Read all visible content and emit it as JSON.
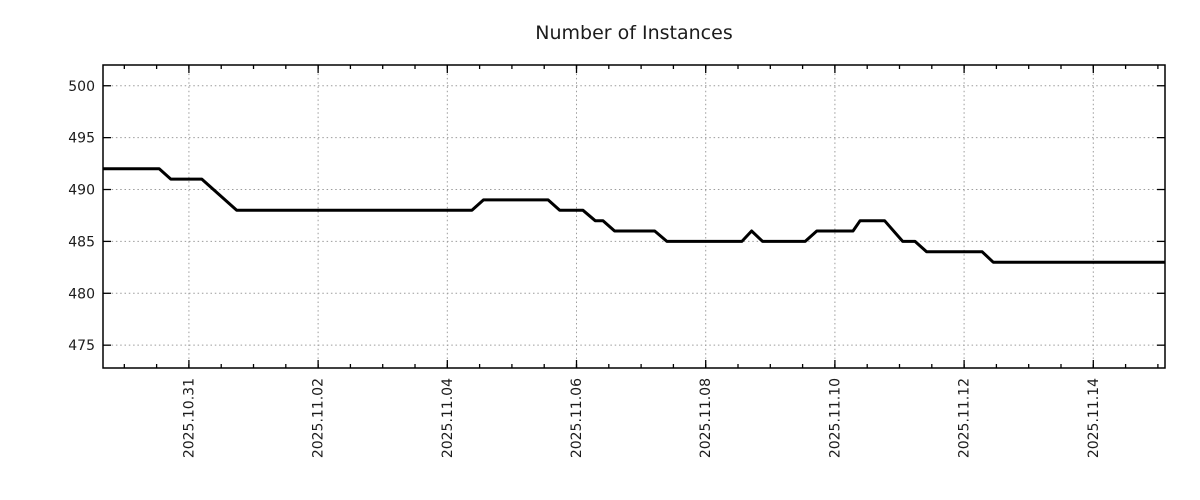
{
  "chart_data": {
    "type": "line",
    "title": "Number of Instances",
    "x_axis": {
      "unit": "days since 2025-10-31 00:00",
      "range": [
        -1.33,
        15.11
      ],
      "minor_tick_step": 0.5,
      "major_ticks": [
        {
          "t": 0,
          "label": "2025.10.31"
        },
        {
          "t": 2,
          "label": "2025.11.02"
        },
        {
          "t": 4,
          "label": "2025.11.04"
        },
        {
          "t": 6,
          "label": "2025.11.06"
        },
        {
          "t": 8,
          "label": "2025.11.08"
        },
        {
          "t": 10,
          "label": "2025.11.10"
        },
        {
          "t": 12,
          "label": "2025.11.12"
        },
        {
          "t": 14,
          "label": "2025.11.14"
        }
      ]
    },
    "y_axis": {
      "range": [
        472.8,
        502.0
      ],
      "ticks": [
        475,
        480,
        485,
        490,
        495,
        500
      ]
    },
    "grid": {
      "show": true,
      "style": "dotted"
    },
    "legend": {
      "show": false
    },
    "series": [
      {
        "name": "Number of Instances",
        "points": [
          [
            -1.33,
            492
          ],
          [
            -0.46,
            492
          ],
          [
            -0.28,
            491
          ],
          [
            0.2,
            491
          ],
          [
            0.74,
            488
          ],
          [
            4.38,
            488
          ],
          [
            4.56,
            489
          ],
          [
            5.56,
            489
          ],
          [
            5.74,
            488
          ],
          [
            6.1,
            488
          ],
          [
            6.29,
            487
          ],
          [
            6.41,
            487
          ],
          [
            6.59,
            486
          ],
          [
            7.21,
            486
          ],
          [
            7.4,
            485
          ],
          [
            8.56,
            485
          ],
          [
            8.71,
            486
          ],
          [
            8.88,
            485
          ],
          [
            9.54,
            485
          ],
          [
            9.72,
            486
          ],
          [
            10.28,
            486
          ],
          [
            10.39,
            487
          ],
          [
            10.77,
            487
          ],
          [
            11.05,
            485
          ],
          [
            11.24,
            485
          ],
          [
            11.42,
            484
          ],
          [
            12.28,
            484
          ],
          [
            12.45,
            483
          ],
          [
            15.11,
            483
          ]
        ]
      }
    ],
    "colors": {
      "line": "#000000",
      "grid": "#9c9c9c",
      "text": "#1c1c1c",
      "border": "#000000",
      "background": "#ffffff"
    }
  }
}
